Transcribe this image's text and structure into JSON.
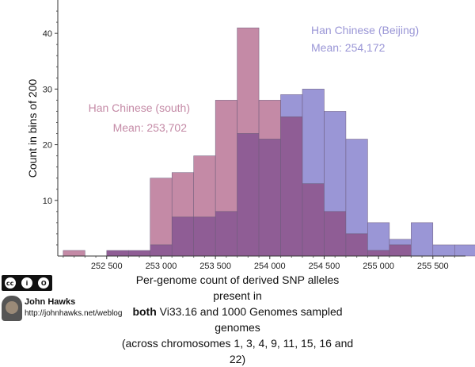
{
  "chart_data": {
    "type": "histogram",
    "ylabel": "Count in bins of 200",
    "xlabel_line1": "Per-genome count of derived SNP alleles present in",
    "xlabel_bold": "both",
    "xlabel_line2_rest": " Vi33.16 and 1000 Genomes sampled genomes",
    "xlabel_line3": "(across chromosomes 1, 3, 4, 9, 11, 15, 16 and 22)",
    "xlim": [
      252050,
      255800
    ],
    "ylim": [
      0,
      46
    ],
    "bin_width": 200,
    "x_ticks": [
      252500,
      253000,
      253500,
      254000,
      254500,
      255000,
      255500
    ],
    "x_tick_labels": [
      "252 500",
      "253 000",
      "253 500",
      "254 000",
      "254 500",
      "255 000",
      "255 500"
    ],
    "y_ticks": [
      10,
      20,
      30,
      40
    ],
    "y_tick_labels": [
      "10",
      "20",
      "30",
      "40"
    ],
    "grid": false,
    "series": [
      {
        "name": "Han Chinese (south)",
        "color": "#c48aa6",
        "bin_starts": [
          252100,
          252300,
          252500,
          252700,
          252900,
          253100,
          253300,
          253500,
          253700,
          253900,
          254100,
          254300,
          254500,
          254700,
          254900,
          255100,
          255300,
          255500,
          255700
        ],
        "counts": [
          1,
          0,
          1,
          1,
          14,
          15,
          18,
          28,
          41,
          28,
          25,
          13,
          8,
          4,
          1,
          2,
          0,
          0,
          0
        ]
      },
      {
        "name": "Han Chinese (Beijing)",
        "color": "#9a96d6",
        "bin_starts": [
          252100,
          252300,
          252500,
          252700,
          252900,
          253100,
          253300,
          253500,
          253700,
          253900,
          254100,
          254300,
          254500,
          254700,
          254900,
          255100,
          255300,
          255500,
          255700
        ],
        "counts": [
          0,
          0,
          1,
          1,
          2,
          7,
          7,
          8,
          22,
          21,
          29,
          30,
          26,
          21,
          6,
          3,
          6,
          2,
          2
        ]
      }
    ],
    "annotations": [
      {
        "series": "Han Chinese (south)",
        "line1": "Han Chinese (south)",
        "line2": "Mean: 253,702",
        "color": "#c48aa6"
      },
      {
        "series": "Han Chinese (Beijing)",
        "line1": "Han Chinese (Beijing)",
        "line2": "Mean: 254,172",
        "color": "#9a96d6"
      }
    ],
    "overlap_color": "#8f5d95"
  },
  "credit": {
    "license_badge": "cc by sa",
    "license_symbols": [
      "cc",
      "i",
      "O"
    ],
    "license_words": [
      "BY",
      "SA"
    ],
    "author": "John Hawks",
    "site": "http://johnhawks.net/weblog"
  }
}
